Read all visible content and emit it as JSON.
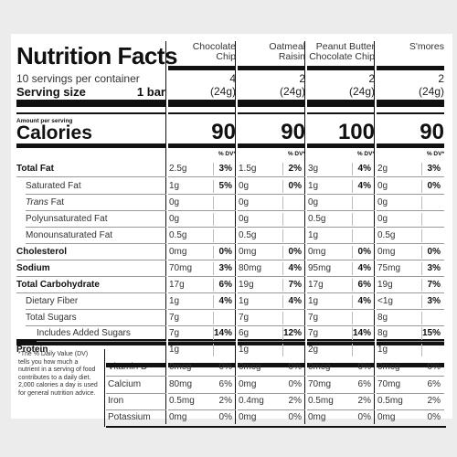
{
  "title": "Nutrition Facts",
  "servings_per_container": "10 servings per container",
  "serving_size_label": "Serving size",
  "serving_size_value": "1 bar",
  "amount_per_serving": "Amount per serving",
  "calories_label": "Calories",
  "columns": [
    {
      "name": "Chocolate\nChip",
      "count": "4",
      "weight": "(24g)",
      "calories": "90"
    },
    {
      "name": "Oatmeal\nRaisin",
      "count": "2",
      "weight": "(24g)",
      "calories": "90"
    },
    {
      "name": "Peanut Butter\nChocolate Chip",
      "count": "2",
      "weight": "(24g)",
      "calories": "100"
    },
    {
      "name": "S'mores",
      "count": "2",
      "weight": "(24g)",
      "calories": "90"
    }
  ],
  "dv_header": "% DV*",
  "rows": [
    {
      "label": "Total Fat",
      "bold": true,
      "values": [
        {
          "amt": "2.5g",
          "dv": "3%"
        },
        {
          "amt": "1.5g",
          "dv": "2%"
        },
        {
          "amt": "3g",
          "dv": "4%"
        },
        {
          "amt": "2g",
          "dv": "3%"
        }
      ]
    },
    {
      "label": "Saturated Fat",
      "indent": 1,
      "values": [
        {
          "amt": "1g",
          "dv": "5%"
        },
        {
          "amt": "0g",
          "dv": "0%"
        },
        {
          "amt": "1g",
          "dv": "4%"
        },
        {
          "amt": "0g",
          "dv": "0%"
        }
      ]
    },
    {
      "label": "Trans Fat",
      "indent": 1,
      "italic": "Trans",
      "values": [
        {
          "amt": "0g",
          "dv": ""
        },
        {
          "amt": "0g",
          "dv": ""
        },
        {
          "amt": "0g",
          "dv": ""
        },
        {
          "amt": "0g",
          "dv": ""
        }
      ]
    },
    {
      "label": "Polyunsaturated Fat",
      "indent": 1,
      "values": [
        {
          "amt": "0g",
          "dv": ""
        },
        {
          "amt": "0g",
          "dv": ""
        },
        {
          "amt": "0.5g",
          "dv": ""
        },
        {
          "amt": "0g",
          "dv": ""
        }
      ]
    },
    {
      "label": "Monounsaturated Fat",
      "indent": 1,
      "values": [
        {
          "amt": "0.5g",
          "dv": ""
        },
        {
          "amt": "0.5g",
          "dv": ""
        },
        {
          "amt": "1g",
          "dv": ""
        },
        {
          "amt": "0.5g",
          "dv": ""
        }
      ]
    },
    {
      "label": "Cholesterol",
      "bold": true,
      "values": [
        {
          "amt": "0mg",
          "dv": "0%"
        },
        {
          "amt": "0mg",
          "dv": "0%"
        },
        {
          "amt": "0mg",
          "dv": "0%"
        },
        {
          "amt": "0mg",
          "dv": "0%"
        }
      ]
    },
    {
      "label": "Sodium",
      "bold": true,
      "values": [
        {
          "amt": "70mg",
          "dv": "3%"
        },
        {
          "amt": "80mg",
          "dv": "4%"
        },
        {
          "amt": "95mg",
          "dv": "4%"
        },
        {
          "amt": "75mg",
          "dv": "3%"
        }
      ]
    },
    {
      "label": "Total Carbohydrate",
      "bold": true,
      "values": [
        {
          "amt": "17g",
          "dv": "6%"
        },
        {
          "amt": "19g",
          "dv": "7%"
        },
        {
          "amt": "17g",
          "dv": "6%"
        },
        {
          "amt": "19g",
          "dv": "7%"
        }
      ]
    },
    {
      "label": "Dietary Fiber",
      "indent": 1,
      "values": [
        {
          "amt": "1g",
          "dv": "4%"
        },
        {
          "amt": "1g",
          "dv": "4%"
        },
        {
          "amt": "1g",
          "dv": "4%"
        },
        {
          "amt": "<1g",
          "dv": "3%"
        }
      ]
    },
    {
      "label": "Total Sugars",
      "indent": 1,
      "values": [
        {
          "amt": "7g",
          "dv": ""
        },
        {
          "amt": "7g",
          "dv": ""
        },
        {
          "amt": "7g",
          "dv": ""
        },
        {
          "amt": "8g",
          "dv": ""
        }
      ]
    },
    {
      "label": "Includes Added Sugars",
      "indent": 2,
      "values": [
        {
          "amt": "7g",
          "dv": "14%"
        },
        {
          "amt": "6g",
          "dv": "12%"
        },
        {
          "amt": "7g",
          "dv": "14%"
        },
        {
          "amt": "8g",
          "dv": "15%"
        }
      ]
    },
    {
      "label": "Protein",
      "bold": true,
      "values": [
        {
          "amt": "1g",
          "dv": ""
        },
        {
          "amt": "1g",
          "dv": ""
        },
        {
          "amt": "2g",
          "dv": ""
        },
        {
          "amt": "1g",
          "dv": ""
        }
      ]
    }
  ],
  "micros": [
    {
      "label": "Vitamin D",
      "values": [
        {
          "amt": "0mcg",
          "dv": "0%"
        },
        {
          "amt": "0mcg",
          "dv": "0%"
        },
        {
          "amt": "0mcg",
          "dv": "0%"
        },
        {
          "amt": "0mcg",
          "dv": "0%"
        }
      ]
    },
    {
      "label": "Calcium",
      "values": [
        {
          "amt": "80mg",
          "dv": "6%"
        },
        {
          "amt": "0mg",
          "dv": "0%"
        },
        {
          "amt": "70mg",
          "dv": "6%"
        },
        {
          "amt": "70mg",
          "dv": "6%"
        }
      ]
    },
    {
      "label": "Iron",
      "values": [
        {
          "amt": "0.5mg",
          "dv": "2%"
        },
        {
          "amt": "0.4mg",
          "dv": "2%"
        },
        {
          "amt": "0.5mg",
          "dv": "2%"
        },
        {
          "amt": "0.5mg",
          "dv": "2%"
        }
      ]
    },
    {
      "label": "Potassium",
      "values": [
        {
          "amt": "0mg",
          "dv": "0%"
        },
        {
          "amt": "0mg",
          "dv": "0%"
        },
        {
          "amt": "0mg",
          "dv": "0%"
        },
        {
          "amt": "0mg",
          "dv": "0%"
        }
      ]
    }
  ],
  "footnote": "*The % Daily Value (DV) tells you how much a nutrient in a serving of food contributes to a daily diet. 2,000 calories a day is used for general nutrition advice."
}
